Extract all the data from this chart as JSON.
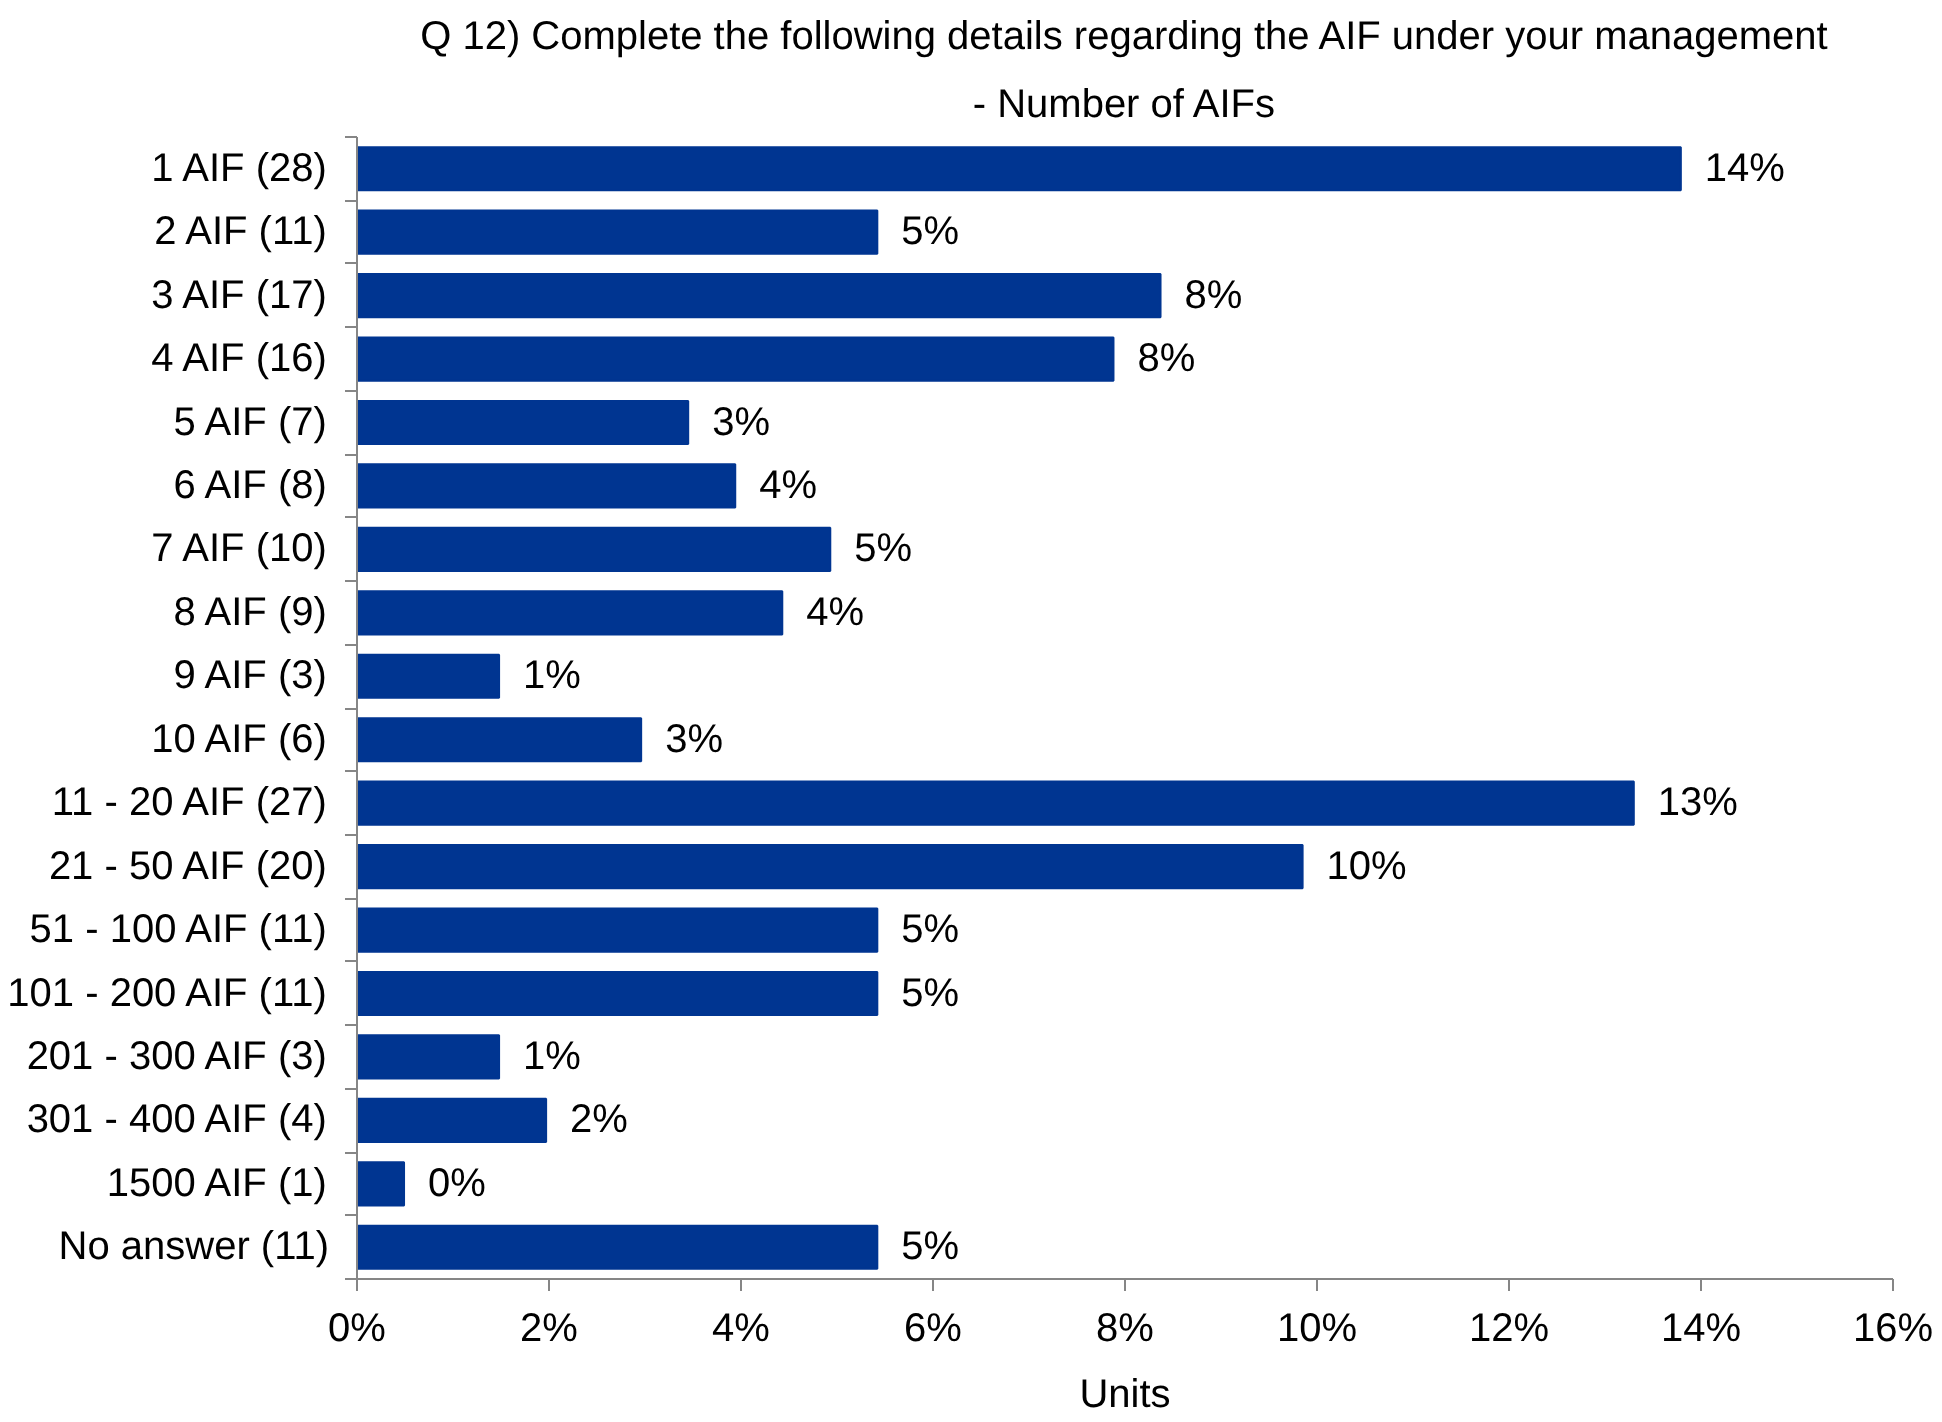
{
  "chart_data": {
    "type": "bar",
    "orientation": "horizontal",
    "title": "Q 12) Complete the following details regarding the AIF under your management",
    "subtitle": "- Number of AIFs",
    "xlabel": "Units",
    "categories": [
      "1 AIF (28)",
      "2 AIF (11)",
      "3 AIF (17)",
      "4 AIF (16)",
      "5 AIF (7)",
      "6 AIF (8)",
      "7 AIF (10)",
      "8 AIF (9)",
      "9 AIF (3)",
      "10 AIF (6)",
      "11 - 20 AIF (27)",
      "21 - 50 AIF (20)",
      "51 - 100 AIF (11)",
      "101 - 200 AIF (11)",
      "201 - 300 AIF (3)",
      "301 - 400 AIF (4)",
      "1500 AIF (1)",
      "No answer (11)"
    ],
    "values": [
      13.79,
      5.42,
      8.37,
      7.88,
      3.45,
      3.94,
      4.93,
      4.43,
      1.48,
      2.96,
      13.3,
      9.85,
      5.42,
      5.42,
      1.48,
      1.97,
      0.49,
      5.42
    ],
    "color": "#003591",
    "value_labels": [
      "14%",
      "5%",
      "8%",
      "8%",
      "3%",
      "4%",
      "5%",
      "4%",
      "1%",
      "3%",
      "13%",
      "10%",
      "5%",
      "5%",
      "1%",
      "2%",
      "0%",
      "5%"
    ],
    "xlim": [
      0,
      16
    ],
    "xticks": [
      {
        "value": 0,
        "label": "0%"
      },
      {
        "value": 2,
        "label": "2%"
      },
      {
        "value": 4,
        "label": "4%"
      },
      {
        "value": 6,
        "label": "6%"
      },
      {
        "value": 8,
        "label": "8%"
      },
      {
        "value": 10,
        "label": "10%"
      },
      {
        "value": 12,
        "label": "12%"
      },
      {
        "value": 14,
        "label": "14%"
      },
      {
        "value": 16,
        "label": "16%"
      }
    ]
  }
}
